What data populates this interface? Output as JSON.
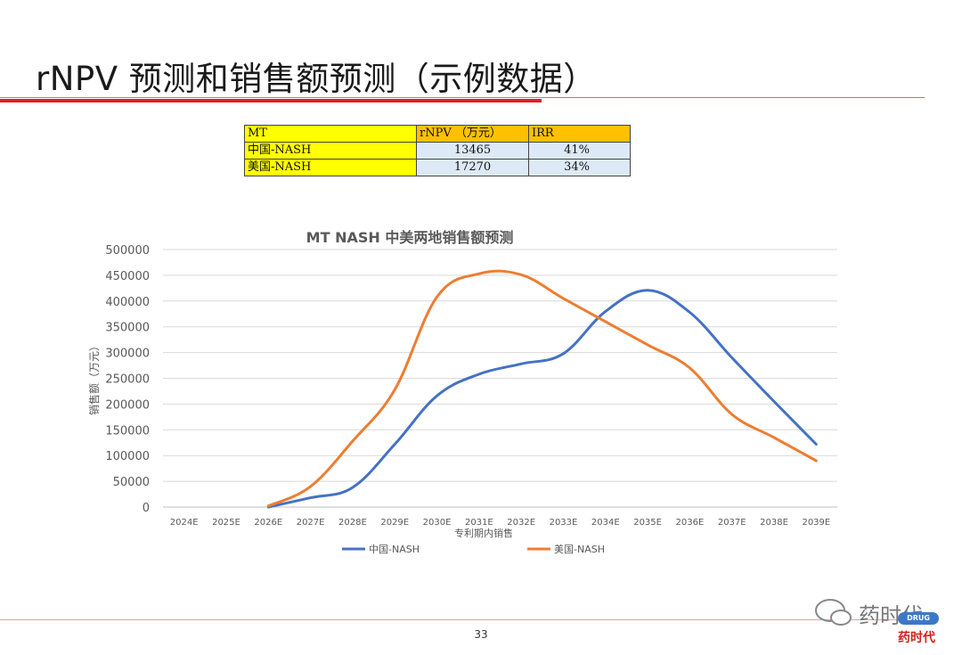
{
  "slide": {
    "title": "rNPV 预测和销售额预测（示例数据）",
    "page_number": "33"
  },
  "summary_table": {
    "header": [
      "MT",
      "rNPV （万元）",
      "IRR"
    ],
    "rows": [
      [
        "中国-NASH",
        "13465",
        "41%"
      ],
      [
        "美国-NASH",
        "17270",
        "34%"
      ]
    ]
  },
  "chart_data": {
    "type": "line",
    "title": "MT NASH 中美两地销售额预测",
    "xlabel": "专利期内销售",
    "ylabel": "销售额（万元）",
    "categories": [
      "2024E",
      "2025E",
      "2026E",
      "2027E",
      "2028E",
      "2029E",
      "2030E",
      "2031E",
      "2032E",
      "2033E",
      "2034E",
      "2035E",
      "2036E",
      "2037E",
      "2038E",
      "2039E"
    ],
    "y_ticks": [
      "0",
      "50000",
      "100000",
      "150000",
      "200000",
      "250000",
      "300000",
      "350000",
      "400000",
      "450000",
      "500000"
    ],
    "ylim": [
      0,
      500000
    ],
    "grid": true,
    "legend_position": "bottom",
    "series": [
      {
        "name": "中国-NASH",
        "color": "#4472c4",
        "values": [
          null,
          null,
          0,
          18000,
          38000,
          122000,
          216000,
          258000,
          278000,
          298000,
          380000,
          421000,
          378000,
          290000,
          205000,
          122000
        ]
      },
      {
        "name": "美国-NASH",
        "color": "#ed7d31",
        "values": [
          null,
          null,
          2000,
          40000,
          128000,
          228000,
          408000,
          453000,
          451000,
          405000,
          360000,
          315000,
          270000,
          180000,
          135000,
          90000
        ]
      }
    ]
  },
  "watermark": {
    "text": "药时代",
    "badge": "DRUG TIMES",
    "text_red": "药时代"
  }
}
